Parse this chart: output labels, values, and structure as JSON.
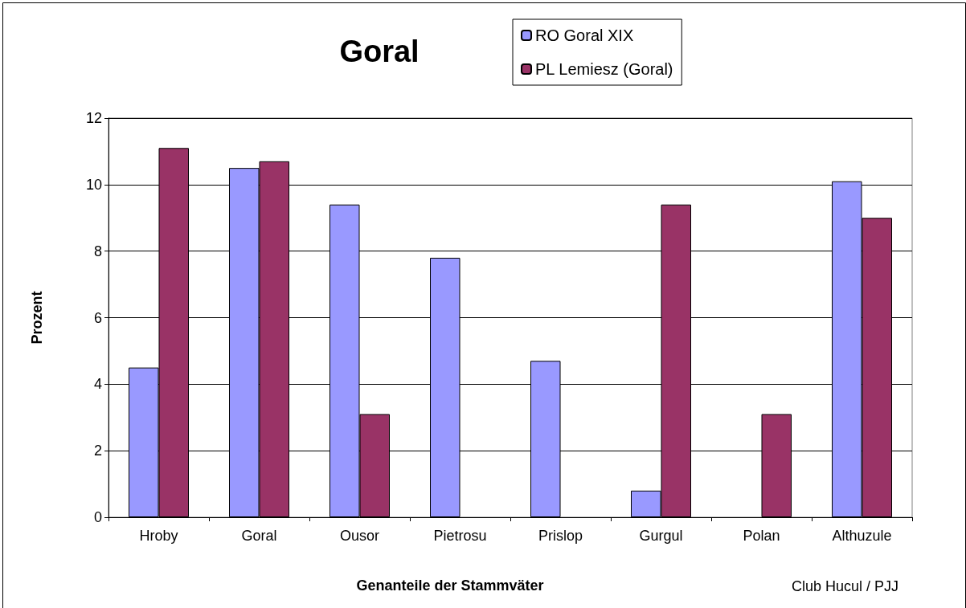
{
  "chart_data": {
    "type": "bar",
    "title": "Goral",
    "xlabel": "Genanteile der Stammväter",
    "ylabel": "Prozent",
    "categories": [
      "Hroby",
      "Goral",
      "Ousor",
      "Pietrosu",
      "Prislop",
      "Gurgul",
      "Polan",
      "Althuzule"
    ],
    "series": [
      {
        "name": "RO Goral XIX",
        "color": "#9999ff",
        "values": [
          4.5,
          10.5,
          9.4,
          7.8,
          4.7,
          0.8,
          null,
          10.1
        ]
      },
      {
        "name": "PL Lemiesz (Goral)",
        "color": "#993366",
        "values": [
          11.1,
          10.7,
          3.1,
          null,
          null,
          9.4,
          3.1,
          9.0
        ]
      }
    ],
    "ylim": [
      0,
      12
    ],
    "yticks": [
      0,
      2,
      4,
      6,
      8,
      10,
      12
    ],
    "grid": "y",
    "legend": "top right",
    "annotations": [
      "Club Hucul / PJJ"
    ]
  }
}
